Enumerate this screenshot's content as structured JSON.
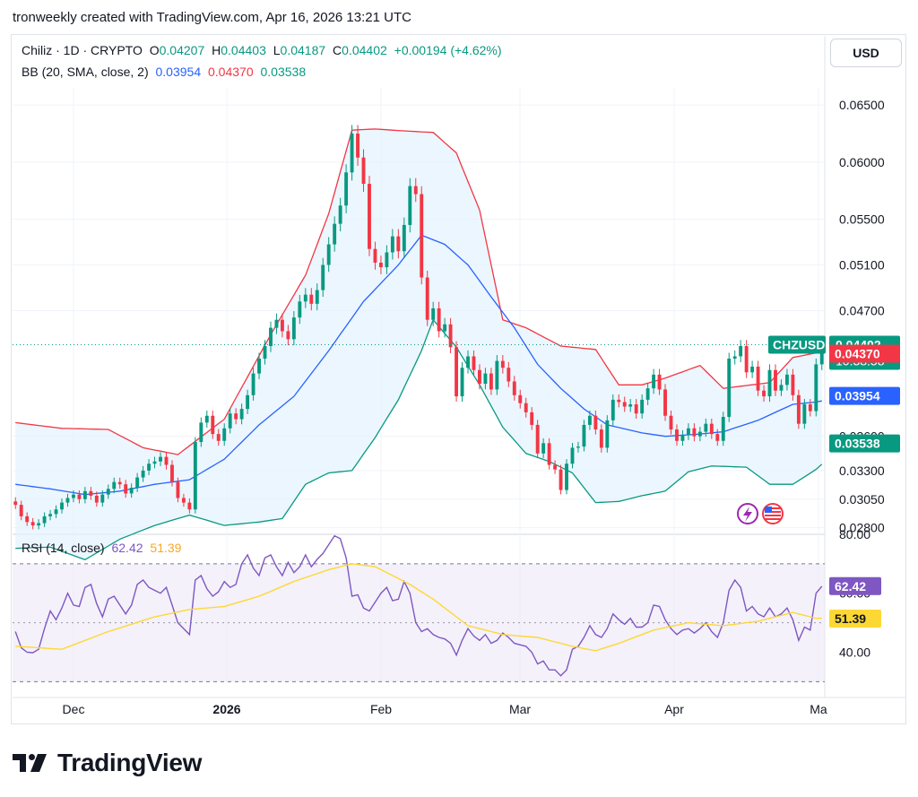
{
  "header": {
    "text": "tronweekly created with TradingView.com, Apr 16, 2026 13:21 UTC"
  },
  "currency_button": "USD",
  "legend": {
    "symbol": "Chiliz · 1D · CRYPTO",
    "open_label": "O",
    "open": "0.04207",
    "high_label": "H",
    "high": "0.04403",
    "low_label": "L",
    "low": "0.04187",
    "close_label": "C",
    "close": "0.04402",
    "change": "+0.00194 (+4.62%)",
    "bb_label": "BB (20, SMA, close, 2)",
    "bb_basis": "0.03954",
    "bb_upper": "0.04370",
    "bb_lower": "0.03538",
    "rsi_label": "RSI (14, close)",
    "rsi_value": "62.42",
    "rsi_ma": "51.39"
  },
  "price_axis": [
    "0.06500",
    "0.06000",
    "0.05500",
    "0.05100",
    "0.04700",
    "0.03600",
    "0.03300",
    "0.03050",
    "0.02800"
  ],
  "rsi_axis": [
    "80.00",
    "60.00",
    "40.00"
  ],
  "time_axis": [
    "Dec",
    "2026",
    "Feb",
    "Mar",
    "Apr",
    "Ma"
  ],
  "price_labels": {
    "ticker": "CHZUSD",
    "last": "0.04402",
    "countdown": "10:38:58",
    "upper": "0.04370",
    "basis": "0.03954",
    "lower": "0.03538"
  },
  "rsi_labels": {
    "rsi": "62.42",
    "ma": "51.39"
  },
  "colors": {
    "up": "#089981",
    "down": "#f23645",
    "bb_upper": "#f23645",
    "bb_basis": "#2962ff",
    "bb_lower": "#089981",
    "bb_fill": "#e3f2fd",
    "rsi_line": "#7e57c2",
    "rsi_ma": "#fdd835",
    "rsi_band": "#ede7f6"
  },
  "brand": "TradingView",
  "chart_data": [
    {
      "type": "candlestick",
      "title": "Chiliz · 1D · CRYPTO",
      "x_labels": [
        "Dec",
        "2026",
        "Feb",
        "Mar",
        "Apr",
        "Ma"
      ],
      "ylim": [
        0.0275,
        0.0665
      ],
      "series": [
        {
          "name": "Price",
          "kind": "candles",
          "close": [
            0.03,
            0.029,
            0.0285,
            0.0282,
            0.0284,
            0.029,
            0.0292,
            0.0296,
            0.0302,
            0.0306,
            0.0309,
            0.0305,
            0.0312,
            0.0308,
            0.0302,
            0.0309,
            0.0314,
            0.032,
            0.0318,
            0.031,
            0.0315,
            0.0324,
            0.033,
            0.0336,
            0.0338,
            0.0342,
            0.0335,
            0.032,
            0.0306,
            0.0302,
            0.0296,
            0.0355,
            0.0372,
            0.0378,
            0.0362,
            0.0356,
            0.0367,
            0.038,
            0.0375,
            0.0384,
            0.0396,
            0.0415,
            0.0428,
            0.0439,
            0.0455,
            0.0462,
            0.0452,
            0.0445,
            0.0464,
            0.0478,
            0.0484,
            0.0476,
            0.0488,
            0.051,
            0.0528,
            0.0546,
            0.0562,
            0.0591,
            0.0625,
            0.0604,
            0.0581,
            0.0524,
            0.0512,
            0.0508,
            0.0521,
            0.0535,
            0.0522,
            0.0545,
            0.0579,
            0.0572,
            0.0499,
            0.0462,
            0.0472,
            0.0452,
            0.0458,
            0.0438,
            0.0395,
            0.042,
            0.043,
            0.0418,
            0.0406,
            0.0415,
            0.0401,
            0.0426,
            0.042,
            0.0408,
            0.0396,
            0.0389,
            0.0381,
            0.037,
            0.0345,
            0.0354,
            0.0335,
            0.0331,
            0.0313,
            0.0336,
            0.035,
            0.0351,
            0.037,
            0.0378,
            0.0366,
            0.035,
            0.0374,
            0.0392,
            0.039,
            0.0386,
            0.0388,
            0.038,
            0.0392,
            0.0402,
            0.0414,
            0.0401,
            0.0378,
            0.0366,
            0.0356,
            0.0361,
            0.0367,
            0.036,
            0.0364,
            0.0371,
            0.0362,
            0.0356,
            0.0377,
            0.0428,
            0.043,
            0.0439,
            0.0416,
            0.0421,
            0.04,
            0.0395,
            0.0418,
            0.04,
            0.0405,
            0.0414,
            0.0396,
            0.0371,
            0.0388,
            0.0382,
            0.0423,
            0.044
          ]
        },
        {
          "name": "BB Upper",
          "kind": "line",
          "points": [
            [
              0,
              0.0372
            ],
            [
              8,
              0.0367
            ],
            [
              16,
              0.0366
            ],
            [
              22,
              0.035
            ],
            [
              28,
              0.0344
            ],
            [
              36,
              0.0375
            ],
            [
              44,
              0.0449
            ],
            [
              50,
              0.0501
            ],
            [
              54,
              0.0555
            ],
            [
              58,
              0.0628
            ],
            [
              62,
              0.0629
            ],
            [
              68,
              0.0627
            ],
            [
              72,
              0.0626
            ],
            [
              76,
              0.0608
            ],
            [
              80,
              0.0558
            ],
            [
              84,
              0.0462
            ],
            [
              88,
              0.0455
            ],
            [
              94,
              0.0439
            ],
            [
              100,
              0.0436
            ],
            [
              104,
              0.0405
            ],
            [
              108,
              0.0405
            ],
            [
              112,
              0.0411
            ],
            [
              118,
              0.0422
            ],
            [
              122,
              0.0402
            ],
            [
              130,
              0.0407
            ],
            [
              134,
              0.0429
            ],
            [
              138,
              0.0433
            ],
            [
              143,
              0.0437
            ]
          ]
        },
        {
          "name": "BB Basis",
          "kind": "line",
          "points": [
            [
              0,
              0.0318
            ],
            [
              6,
              0.0314
            ],
            [
              12,
              0.0309
            ],
            [
              18,
              0.0312
            ],
            [
              24,
              0.0318
            ],
            [
              30,
              0.0322
            ],
            [
              36,
              0.034
            ],
            [
              42,
              0.037
            ],
            [
              48,
              0.0395
            ],
            [
              54,
              0.0435
            ],
            [
              60,
              0.0478
            ],
            [
              66,
              0.051
            ],
            [
              70,
              0.0536
            ],
            [
              74,
              0.0528
            ],
            [
              78,
              0.051
            ],
            [
              82,
              0.0482
            ],
            [
              86,
              0.0455
            ],
            [
              90,
              0.0423
            ],
            [
              94,
              0.0402
            ],
            [
              98,
              0.0384
            ],
            [
              102,
              0.037
            ],
            [
              108,
              0.0363
            ],
            [
              112,
              0.036
            ],
            [
              118,
              0.0362
            ],
            [
              122,
              0.0364
            ],
            [
              128,
              0.0374
            ],
            [
              134,
              0.0388
            ],
            [
              138,
              0.039
            ],
            [
              143,
              0.0395
            ]
          ]
        },
        {
          "name": "BB Lower",
          "kind": "line",
          "points": [
            [
              0,
              0.0262
            ],
            [
              6,
              0.0263
            ],
            [
              12,
              0.0252
            ],
            [
              18,
              0.027
            ],
            [
              24,
              0.0282
            ],
            [
              30,
              0.0291
            ],
            [
              36,
              0.0282
            ],
            [
              42,
              0.0285
            ],
            [
              46,
              0.0288
            ],
            [
              50,
              0.0318
            ],
            [
              54,
              0.0328
            ],
            [
              58,
              0.033
            ],
            [
              62,
              0.0359
            ],
            [
              66,
              0.0392
            ],
            [
              70,
              0.0435
            ],
            [
              72,
              0.0462
            ],
            [
              76,
              0.0438
            ],
            [
              80,
              0.0405
            ],
            [
              84,
              0.0368
            ],
            [
              88,
              0.0345
            ],
            [
              92,
              0.0338
            ],
            [
              96,
              0.0328
            ],
            [
              100,
              0.0302
            ],
            [
              104,
              0.0303
            ],
            [
              108,
              0.0308
            ],
            [
              112,
              0.0312
            ],
            [
              116,
              0.0329
            ],
            [
              120,
              0.0334
            ],
            [
              126,
              0.0333
            ],
            [
              130,
              0.0318
            ],
            [
              134,
              0.0318
            ],
            [
              138,
              0.0331
            ],
            [
              143,
              0.0354
            ]
          ]
        }
      ]
    },
    {
      "type": "line",
      "title": "RSI (14, close)",
      "ylim": [
        29.5,
        80
      ],
      "series": [
        {
          "name": "RSI",
          "values": [
            47.0,
            41.5,
            40.0,
            39.8,
            41.0,
            48.0,
            54.0,
            51.0,
            55.0,
            60.0,
            56.0,
            55.5,
            62.0,
            63.0,
            56.5,
            52.0,
            58.0,
            59.0,
            56.0,
            53.0,
            56.0,
            63.0,
            64.5,
            62.0,
            61.0,
            60.0,
            62.0,
            56.0,
            50.0,
            48.0,
            46.0,
            64.5,
            66.0,
            61.5,
            59.0,
            60.5,
            64.0,
            62.0,
            63.0,
            70.0,
            73.0,
            68.5,
            66.0,
            72.0,
            73.0,
            69.0,
            66.0,
            70.5,
            67.0,
            69.0,
            73.0,
            69.0,
            71.5,
            73.5,
            76.5,
            79.5,
            78.5,
            72.0,
            59.0,
            59.5,
            55.0,
            54.0,
            57.0,
            60.0,
            62.0,
            57.5,
            58.0,
            64.0,
            60.0,
            50.0,
            47.0,
            48.0,
            46.0,
            45.0,
            44.5,
            43.0,
            39.0,
            44.0,
            48.0,
            45.5,
            44.0,
            46.0,
            43.0,
            44.0,
            46.5,
            45.0,
            43.0,
            42.5,
            42.0,
            40.0,
            36.0,
            37.0,
            34.0,
            34.0,
            32.0,
            34.0,
            41.0,
            42.0,
            45.0,
            49.0,
            46.0,
            45.0,
            48.0,
            53.0,
            51.0,
            49.5,
            51.5,
            48.5,
            48.5,
            50.0,
            56.0,
            55.5,
            51.0,
            48.0,
            46.0,
            47.5,
            48.0,
            46.5,
            48.0,
            50.0,
            47.0,
            45.0,
            50.0,
            61.0,
            64.5,
            62.0,
            54.0,
            55.5,
            53.0,
            52.0,
            55.0,
            52.0,
            53.0,
            55.0,
            51.0,
            44.0,
            48.5,
            47.5,
            60.0,
            62.4
          ]
        },
        {
          "name": "RSI MA",
          "points": [
            [
              0,
              42.0
            ],
            [
              8,
              41.0
            ],
            [
              16,
              47.0
            ],
            [
              24,
              52.0
            ],
            [
              30,
              54.5
            ],
            [
              36,
              55.5
            ],
            [
              42,
              59.0
            ],
            [
              48,
              64.0
            ],
            [
              54,
              68.0
            ],
            [
              58,
              70.0
            ],
            [
              62,
              69.0
            ],
            [
              68,
              63.0
            ],
            [
              72,
              58.0
            ],
            [
              78,
              49.0
            ],
            [
              84,
              46.0
            ],
            [
              90,
              45.0
            ],
            [
              96,
              42.0
            ],
            [
              100,
              40.5
            ],
            [
              104,
              43.0
            ],
            [
              110,
              47.5
            ],
            [
              116,
              50.0
            ],
            [
              122,
              49.0
            ],
            [
              128,
              50.5
            ],
            [
              134,
              53.5
            ],
            [
              138,
              51.5
            ],
            [
              143,
              51.4
            ]
          ]
        }
      ]
    }
  ]
}
